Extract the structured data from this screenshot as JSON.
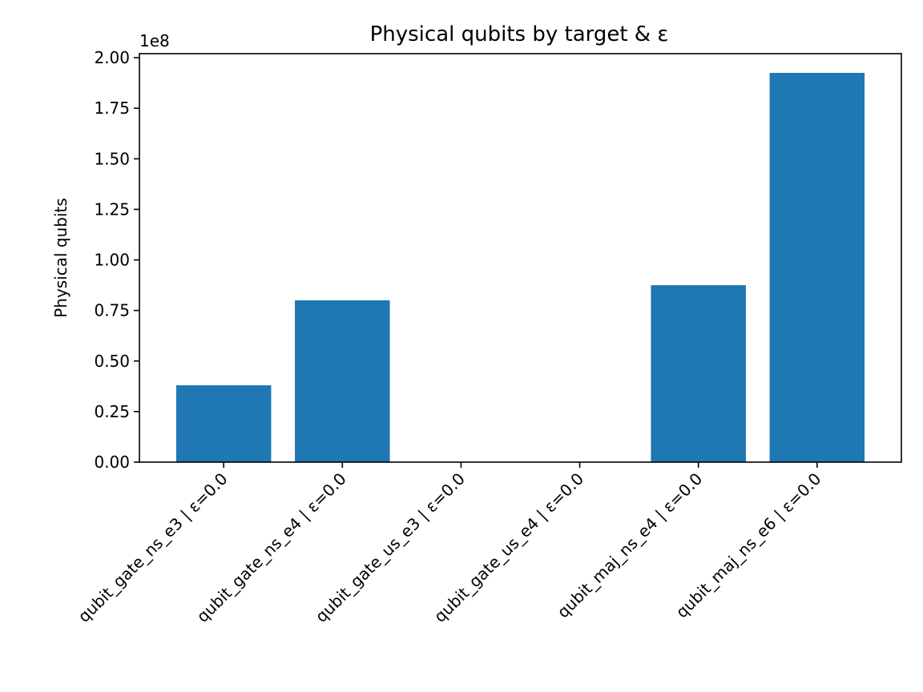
{
  "chart_data": {
    "type": "bar",
    "title": "Physical qubits by target & ε",
    "xlabel": "",
    "ylabel": "Physical qubits",
    "y_offset_label": "1e8",
    "y_scale": 100000000,
    "ylim": [
      0,
      2.02
    ],
    "y_ticks": [
      0,
      0.25,
      0.5,
      0.75,
      1.0,
      1.25,
      1.5,
      1.75,
      2.0
    ],
    "y_tick_labels": [
      "0.00",
      "0.25",
      "0.50",
      "0.75",
      "1.00",
      "1.25",
      "1.50",
      "1.75",
      "2.00"
    ],
    "categories": [
      "qubit_gate_ns_e3 | ε=0.0",
      "qubit_gate_ns_e4 | ε=0.0",
      "qubit_gate_us_e3 | ε=0.0",
      "qubit_gate_us_e4 | ε=0.0",
      "qubit_maj_ns_e4 | ε=0.0",
      "qubit_maj_ns_e6 | ε=0.0"
    ],
    "values": [
      0.38,
      0.8,
      0,
      0,
      0.875,
      1.925
    ],
    "bar_color": "#1f77b4",
    "grid": false
  }
}
